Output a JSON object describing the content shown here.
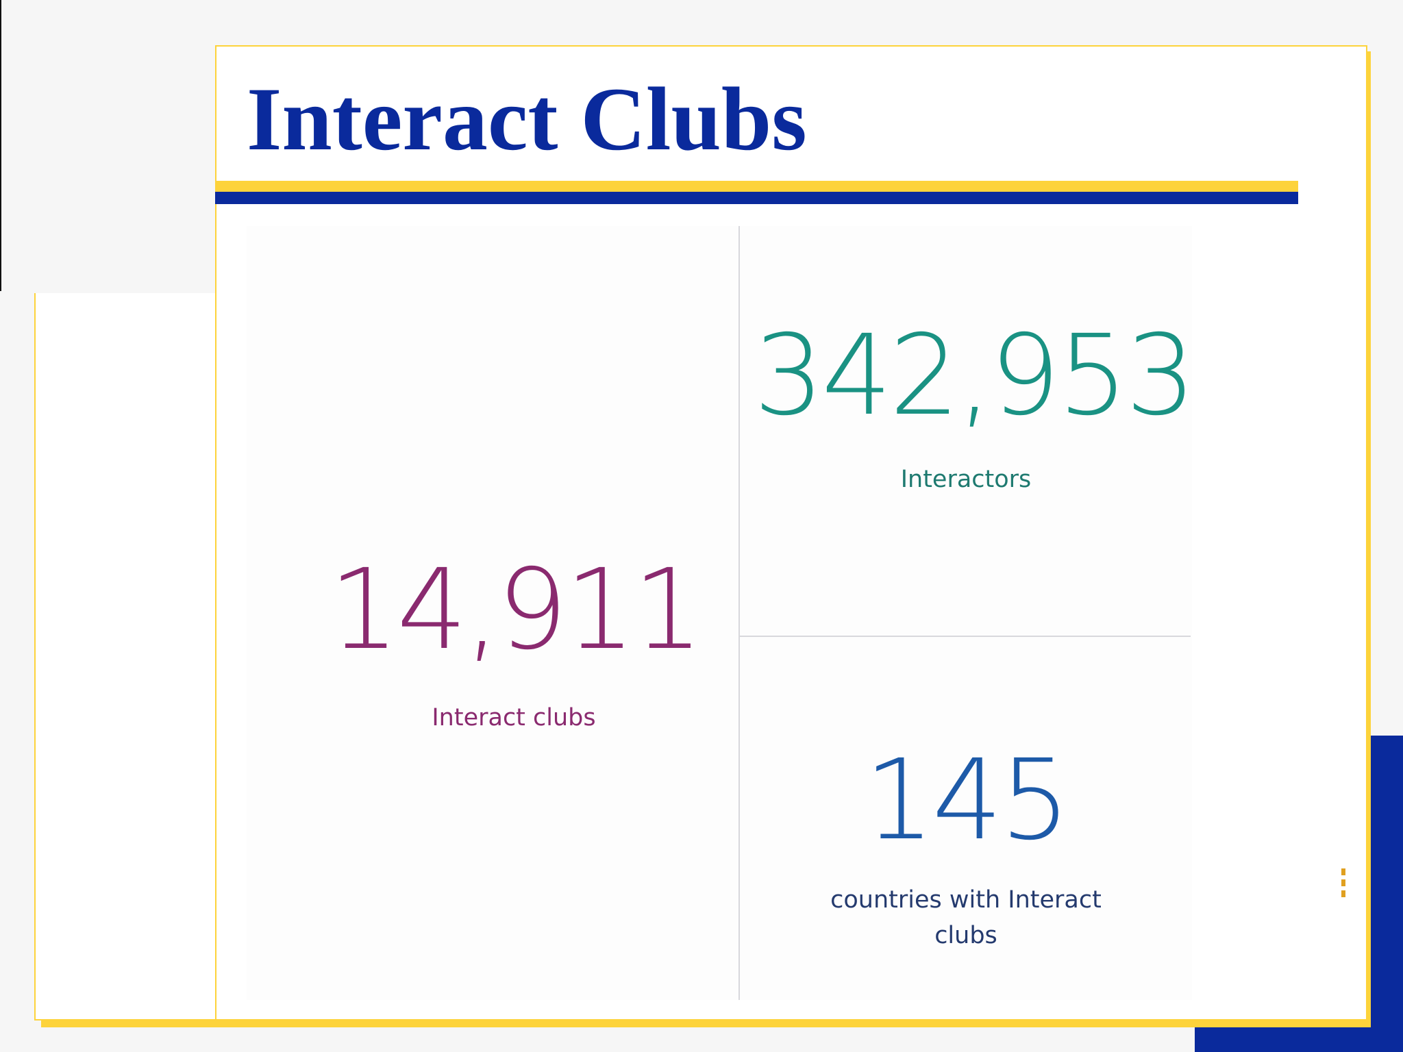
{
  "slide": {
    "title": "Interact Clubs"
  },
  "stats": [
    {
      "value": "14,911",
      "label": "Interact clubs",
      "color": "#8a2a6f"
    },
    {
      "value": "342,953",
      "label": "Interactors",
      "color": "#1a9283"
    },
    {
      "value": "145",
      "label": "countries with Interact clubs",
      "color": "#1d5aa8"
    }
  ],
  "colors": {
    "brand_blue": "#0a2a9c",
    "brand_yellow": "#fdd33b"
  }
}
